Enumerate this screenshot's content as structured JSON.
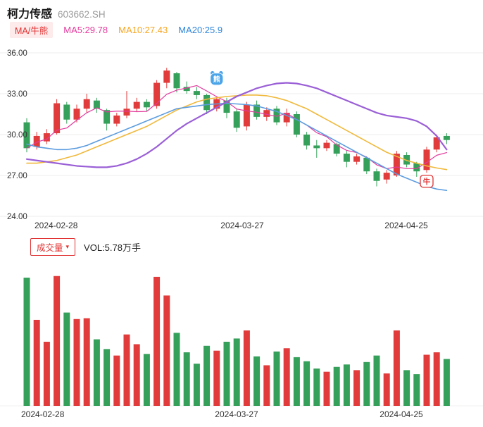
{
  "header": {
    "title": "柯力传感",
    "code": "603662.SH"
  },
  "indicators": {
    "selector_label": "MA/牛熊",
    "ma5": "MA5:29.78",
    "ma10": "MA10:27.43",
    "ma20": "MA20:25.9"
  },
  "volume_section": {
    "selector_label": "成交量",
    "dropdown_icon": "▾",
    "vol_label": "VOL:5.78万手",
    "current_volume": 5.78,
    "volume_unit": "万手"
  },
  "colors": {
    "up": "#e23b3b",
    "down": "#35a05a",
    "ma5": "#e23a9d",
    "ma10": "#f0b93c",
    "ma20": "#5b9ce0",
    "bull_bear": "#9a5fd6",
    "accent": "#e03131",
    "bear_marker": "#4ba3e8",
    "grid": "#ececec",
    "axis_text": "#333333"
  },
  "chart_data": {
    "type": "candlestick_with_volume",
    "title": "柯力传感 603662.SH 日K",
    "price_axis": {
      "min": 24,
      "max": 36,
      "ticks": [
        {
          "label": "36.00",
          "value": 36
        },
        {
          "label": "33.00",
          "value": 33
        },
        {
          "label": "30.00",
          "value": 30
        },
        {
          "label": "27.00",
          "value": 27
        },
        {
          "label": "24.00",
          "value": 24
        }
      ]
    },
    "x_ticks": [
      "2024-02-28",
      "2024-03-27",
      "2024-04-25"
    ],
    "candle_columns": [
      "date",
      "open",
      "high",
      "low",
      "close",
      "volume_wan_shou"
    ],
    "candles": [
      [
        "2024-02-28",
        30.9,
        31.2,
        28.7,
        29.0,
        15.8
      ],
      [
        "2024-02-29",
        29.1,
        30.2,
        28.9,
        29.9,
        10.6
      ],
      [
        "2024-03-01",
        29.5,
        30.4,
        29.3,
        30.1,
        7.9
      ],
      [
        "2024-03-04",
        30.1,
        32.6,
        30.0,
        32.3,
        16.0
      ],
      [
        "2024-03-05",
        32.2,
        32.4,
        30.8,
        31.1,
        11.5
      ],
      [
        "2024-03-06",
        31.1,
        32.2,
        30.9,
        31.9,
        10.7
      ],
      [
        "2024-03-07",
        31.9,
        33.0,
        31.6,
        32.6,
        10.8
      ],
      [
        "2024-03-08",
        32.5,
        32.7,
        31.6,
        31.9,
        8.2
      ],
      [
        "2024-03-11",
        31.8,
        31.9,
        30.3,
        30.8,
        7.0
      ],
      [
        "2024-03-12",
        30.8,
        31.6,
        30.6,
        31.4,
        6.2
      ],
      [
        "2024-03-13",
        31.4,
        33.2,
        31.2,
        31.9,
        8.8
      ],
      [
        "2024-03-14",
        31.9,
        32.7,
        31.7,
        32.4,
        7.6
      ],
      [
        "2024-03-15",
        32.4,
        32.6,
        31.7,
        32.0,
        6.4
      ],
      [
        "2024-03-18",
        32.1,
        34.0,
        31.9,
        33.8,
        15.9
      ],
      [
        "2024-03-19",
        33.8,
        34.9,
        33.4,
        34.7,
        13.6
      ],
      [
        "2024-03-20",
        34.5,
        34.6,
        33.1,
        33.4,
        9.0
      ],
      [
        "2024-03-21",
        33.5,
        33.9,
        33.0,
        33.2,
        6.6
      ],
      [
        "2024-03-22",
        33.2,
        33.5,
        32.6,
        32.9,
        5.2
      ],
      [
        "2024-03-25",
        32.9,
        33.0,
        31.5,
        31.8,
        7.4
      ],
      [
        "2024-03-26",
        31.9,
        32.8,
        31.7,
        32.6,
        6.8
      ],
      [
        "2024-03-27",
        32.5,
        32.7,
        31.2,
        31.6,
        7.9
      ],
      [
        "2024-03-28",
        31.7,
        31.9,
        30.2,
        30.5,
        8.3
      ],
      [
        "2024-03-29",
        30.6,
        32.4,
        30.3,
        32.2,
        9.3
      ],
      [
        "2024-04-01",
        32.2,
        32.5,
        31.1,
        31.3,
        6.1
      ],
      [
        "2024-04-02",
        31.3,
        32.0,
        31.0,
        31.8,
        5.0
      ],
      [
        "2024-04-03",
        31.9,
        32.1,
        30.7,
        30.9,
        6.7
      ],
      [
        "2024-04-08",
        30.9,
        31.9,
        30.6,
        31.6,
        7.1
      ],
      [
        "2024-04-09",
        31.5,
        31.7,
        29.8,
        30.0,
        6.0
      ],
      [
        "2024-04-10",
        30.0,
        30.2,
        28.9,
        29.2,
        5.5
      ],
      [
        "2024-04-11",
        29.2,
        29.6,
        28.3,
        29.0,
        4.6
      ],
      [
        "2024-04-12",
        29.0,
        29.6,
        28.8,
        29.4,
        4.2
      ],
      [
        "2024-04-15",
        29.3,
        29.4,
        28.4,
        28.6,
        4.8
      ],
      [
        "2024-04-16",
        28.6,
        28.8,
        27.6,
        28.0,
        5.1
      ],
      [
        "2024-04-17",
        28.0,
        28.6,
        27.8,
        28.4,
        4.4
      ],
      [
        "2024-04-18",
        28.3,
        28.4,
        27.1,
        27.3,
        5.4
      ],
      [
        "2024-04-19",
        27.3,
        27.5,
        26.2,
        26.6,
        6.2
      ],
      [
        "2024-04-22",
        26.7,
        27.4,
        26.4,
        27.2,
        4.0
      ],
      [
        "2024-04-23",
        27.0,
        28.8,
        26.9,
        28.6,
        9.3
      ],
      [
        "2024-04-24",
        28.5,
        28.7,
        27.6,
        27.8,
        4.4
      ],
      [
        "2024-04-25",
        27.9,
        28.0,
        26.9,
        27.3,
        3.9
      ],
      [
        "2024-04-26",
        27.4,
        29.1,
        27.2,
        28.9,
        6.3
      ],
      [
        "2024-04-29",
        28.9,
        30.0,
        28.7,
        29.8,
        6.6
      ],
      [
        "2024-04-30",
        29.9,
        30.1,
        29.3,
        29.6,
        5.78
      ]
    ],
    "ma10_line": [
      27.9,
      27.9,
      28.0,
      28.1,
      28.3,
      28.5,
      28.8,
      29.1,
      29.4,
      29.7,
      30.0,
      30.3,
      30.6,
      31.0,
      31.4,
      31.8,
      32.1,
      32.4,
      32.6,
      32.7,
      32.8,
      32.85,
      32.9,
      32.9,
      32.85,
      32.7,
      32.5,
      32.2,
      31.9,
      31.5,
      31.1,
      30.7,
      30.3,
      29.9,
      29.5,
      29.1,
      28.7,
      28.4,
      28.1,
      27.9,
      27.7,
      27.55,
      27.43
    ],
    "ma20_line": [
      29.3,
      29.1,
      29.0,
      28.9,
      28.9,
      29.0,
      29.2,
      29.5,
      29.8,
      30.1,
      30.4,
      30.7,
      31.0,
      31.3,
      31.6,
      31.9,
      32.0,
      32.1,
      32.2,
      32.25,
      32.3,
      32.25,
      32.2,
      32.1,
      31.9,
      31.7,
      31.4,
      31.1,
      30.7,
      30.3,
      29.9,
      29.5,
      29.1,
      28.7,
      28.3,
      27.9,
      27.5,
      27.1,
      26.8,
      26.5,
      26.2,
      26.0,
      25.9
    ],
    "bull_bear_line": [
      28.2,
      28.1,
      28.0,
      27.9,
      27.8,
      27.7,
      27.65,
      27.6,
      27.6,
      27.7,
      27.9,
      28.2,
      28.6,
      29.1,
      29.7,
      30.3,
      30.8,
      31.2,
      31.6,
      32.0,
      32.4,
      32.8,
      33.1,
      33.4,
      33.6,
      33.75,
      33.8,
      33.75,
      33.6,
      33.4,
      33.1,
      32.8,
      32.5,
      32.2,
      31.9,
      31.6,
      31.4,
      31.3,
      31.2,
      31.0,
      30.6,
      29.9,
      28.9
    ],
    "markers": [
      {
        "type": "bear",
        "label": "熊",
        "index": 19,
        "price": 34.1
      },
      {
        "type": "bull",
        "label": "牛",
        "index": 40,
        "price": 26.6
      }
    ]
  }
}
